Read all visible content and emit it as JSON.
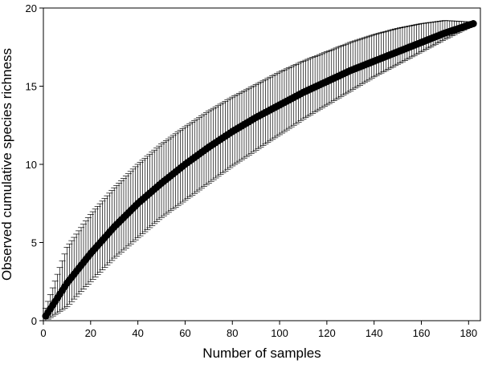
{
  "chart_data": {
    "type": "scatter",
    "title": "",
    "xlabel": "Number of samples",
    "ylabel": "Observed cumulative species richness",
    "xlim": [
      0,
      185
    ],
    "ylim": [
      0,
      20
    ],
    "x_ticks": [
      0,
      20,
      40,
      60,
      80,
      100,
      120,
      140,
      160,
      180
    ],
    "y_ticks": [
      0,
      5,
      10,
      15,
      20
    ],
    "grid": false,
    "legend": "none",
    "colors": {
      "marker": "#000000",
      "errorbar": "#000000",
      "axis": "#000000"
    },
    "series": [
      {
        "x": [
          1,
          10,
          20,
          30,
          40,
          50,
          60,
          70,
          80,
          90,
          100,
          110,
          120,
          130,
          140,
          150,
          160,
          170,
          182
        ],
        "y": [
          0.3,
          2.4,
          4.3,
          6.0,
          7.5,
          8.8,
          10.0,
          11.1,
          12.1,
          13.0,
          13.8,
          14.6,
          15.3,
          16.0,
          16.6,
          17.2,
          17.8,
          18.4,
          19.0
        ],
        "error_low": [
          0.0,
          0.9,
          2.5,
          4.0,
          5.3,
          6.6,
          7.7,
          8.8,
          9.9,
          10.9,
          11.9,
          12.9,
          13.8,
          14.7,
          15.6,
          16.4,
          17.2,
          18.0,
          18.9
        ],
        "error_high": [
          0.8,
          4.7,
          6.8,
          8.5,
          10.0,
          11.3,
          12.4,
          13.4,
          14.3,
          15.1,
          15.9,
          16.6,
          17.2,
          17.8,
          18.3,
          18.7,
          19.0,
          19.2,
          19.1
        ]
      }
    ]
  }
}
